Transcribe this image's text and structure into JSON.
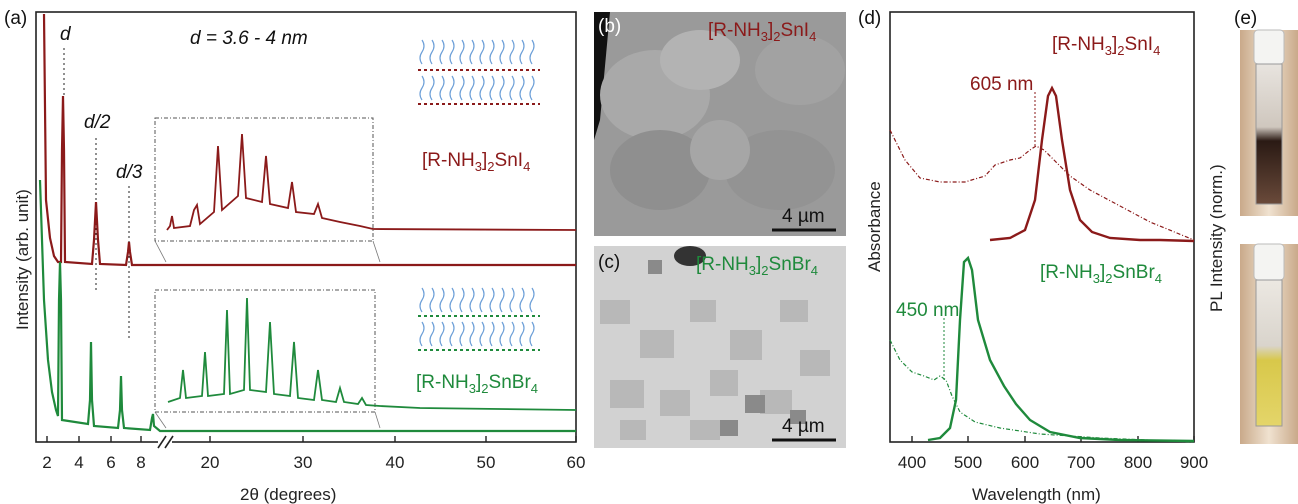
{
  "panels": {
    "a": "(a)",
    "b": "(b)",
    "c": "(c)",
    "d": "(d)",
    "e": "(e)"
  },
  "colors": {
    "snI4": "#8b1a1a",
    "snBr4": "#1f8a3c",
    "axis": "#222222"
  },
  "panel_a": {
    "ylabel": "Intensity (arb. unit)",
    "xlabel": "2θ (degrees)",
    "spacing_label": "d = 3.6 - 4 nm",
    "peak_labels": [
      "d",
      "d/2",
      "d/3"
    ],
    "sample_top_main": "[R-NH",
    "sample_top_sub": "3",
    "sample_top_bracket": "]",
    "sample_top_sub2": "2",
    "sample_top_tail": "SnI",
    "sample_top_sub3": "4",
    "sample_bottom_main": "[R-NH",
    "sample_bottom_sub": "3",
    "sample_bottom_bracket": "]",
    "sample_bottom_sub2": "2",
    "sample_bottom_tail": "SnBr",
    "sample_bottom_sub3": "4",
    "xticks_low": [
      "2",
      "4",
      "6",
      "8"
    ],
    "xticks_high": [
      "20",
      "30",
      "40",
      "50",
      "60"
    ]
  },
  "panel_b": {
    "sample_main": "[R-NH",
    "sample_sub": "3",
    "sample_bracket": "]",
    "sample_sub2": "2",
    "sample_tail": "SnI",
    "sample_sub3": "4",
    "scalebar": "4 µm"
  },
  "panel_c": {
    "sample_main": "[R-NH",
    "sample_sub": "3",
    "sample_bracket": "]",
    "sample_sub2": "2",
    "sample_tail": "SnBr",
    "sample_sub3": "4",
    "scalebar": "4 µm"
  },
  "panel_d": {
    "ylabel_left": "Absorbance",
    "ylabel_right": "PL Intensity (norm.)",
    "xlabel": "Wavelength (nm)",
    "xticks": [
      "400",
      "500",
      "600",
      "700",
      "800",
      "900"
    ],
    "peak_top": "605 nm",
    "peak_bottom": "450 nm",
    "sample_top_main": "[R-NH",
    "sample_top_sub": "3",
    "sample_top_bracket": "]",
    "sample_top_sub2": "2",
    "sample_top_tail": "SnI",
    "sample_top_sub3": "4",
    "sample_bottom_main": "[R-NH",
    "sample_bottom_sub": "3",
    "sample_bottom_bracket": "]",
    "sample_bottom_sub2": "2",
    "sample_bottom_tail": "SnBr",
    "sample_bottom_sub3": "4"
  },
  "chart_data": [
    {
      "type": "line",
      "xlabel": "2θ (degrees)",
      "ylabel": "Intensity (arb. unit)",
      "xlim": [
        1,
        60
      ],
      "series": [
        {
          "name": "[R-NH3]2SnI4",
          "peaks_2theta": [
            2.5,
            5.1,
            7.7
          ]
        },
        {
          "name": "[R-NH3]2SnBr4",
          "peaks_2theta": [
            2.4,
            4.8,
            7.2,
            9.6
          ]
        }
      ]
    },
    {
      "type": "line",
      "xlabel": "Wavelength (nm)",
      "xlim": [
        350,
        900
      ],
      "series": [
        {
          "name": "[R-NH3]2SnI4",
          "pl_peak_nm": 635,
          "abs_feature_nm": 605
        },
        {
          "name": "[R-NH3]2SnBr4",
          "pl_peak_nm": 485,
          "abs_feature_nm": 450
        }
      ]
    }
  ]
}
